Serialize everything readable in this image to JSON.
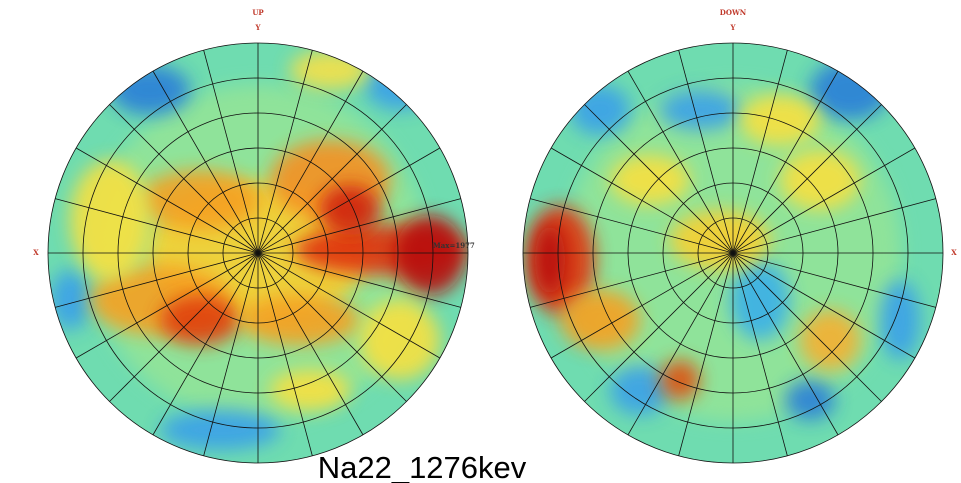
{
  "panels": [
    {
      "title": "UP",
      "y_label": "Y",
      "x_label": "X",
      "annotation": "Max=1977"
    },
    {
      "title": "DOWN",
      "y_label": "Y",
      "x_label": "X"
    }
  ],
  "caption": "Na22_1276kev"
}
